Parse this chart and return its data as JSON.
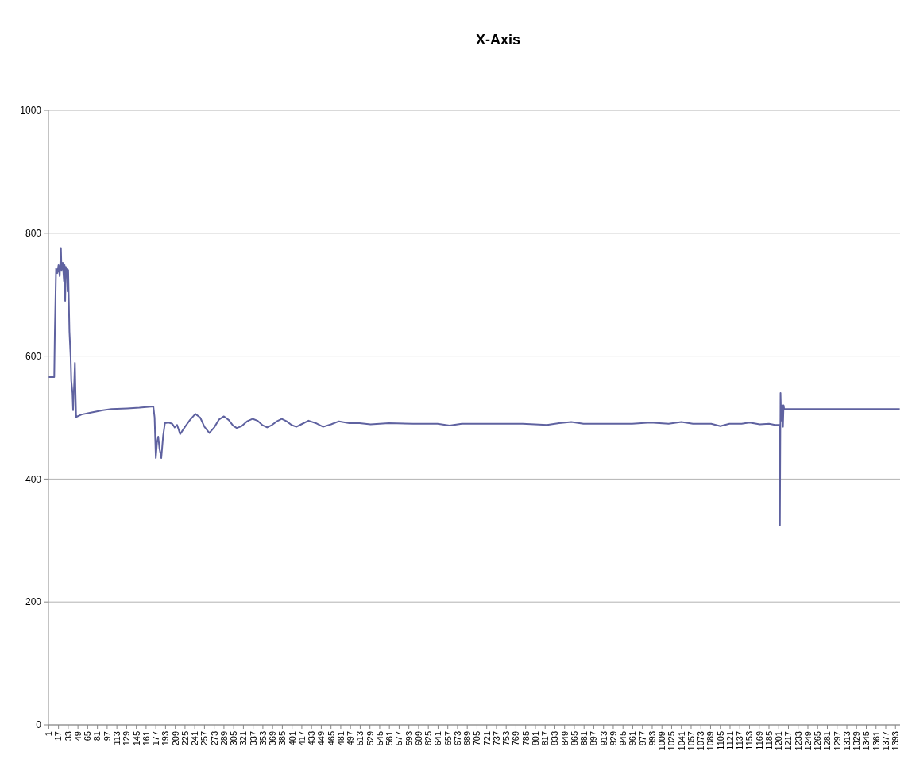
{
  "chart_data": {
    "type": "line",
    "title": "X-Axis",
    "x": [
      1,
      10,
      11,
      12,
      13,
      15,
      17,
      19,
      21,
      22,
      24,
      26,
      27,
      28,
      29,
      31,
      32,
      33,
      35,
      37,
      38,
      40,
      41,
      43,
      44,
      45,
      46,
      55,
      70,
      90,
      104,
      130,
      150,
      173,
      175,
      177,
      179,
      181,
      183,
      186,
      189,
      192,
      198,
      204,
      208,
      212,
      217,
      225,
      233,
      242,
      250,
      257,
      265,
      273,
      281,
      289,
      297,
      304,
      310,
      318,
      327,
      336,
      344,
      352,
      360,
      368,
      376,
      384,
      392,
      400,
      408,
      418,
      428,
      440,
      452,
      465,
      478,
      495,
      512,
      530,
      560,
      600,
      640,
      660,
      680,
      720,
      780,
      820,
      840,
      860,
      880,
      930,
      960,
      990,
      1020,
      1041,
      1060,
      1090,
      1105,
      1120,
      1140,
      1153,
      1170,
      1185,
      1195,
      1202,
      1203,
      1204,
      1205,
      1206,
      1207,
      1208,
      1209,
      1210,
      1300,
      1400
    ],
    "series": [
      {
        "color": "#5f62a0",
        "values": [
          566,
          566,
          640,
          690,
          743,
          735,
          748,
          730,
          776,
          740,
          752,
          722,
          748,
          690,
          745,
          740,
          705,
          740,
          640,
          598,
          560,
          540,
          512,
          560,
          589,
          540,
          501,
          505,
          508,
          512,
          514,
          515,
          516,
          518,
          500,
          434,
          460,
          469,
          450,
          434,
          470,
          491,
          492,
          490,
          484,
          488,
          473,
          485,
          496,
          506,
          500,
          485,
          475,
          484,
          497,
          502,
          496,
          487,
          483,
          486,
          494,
          498,
          495,
          488,
          484,
          488,
          494,
          498,
          494,
          488,
          485,
          490,
          495,
          491,
          485,
          489,
          494,
          491,
          491,
          489,
          491,
          490,
          490,
          487,
          490,
          490,
          490,
          488,
          491,
          493,
          490,
          490,
          490,
          492,
          490,
          493,
          490,
          490,
          486,
          490,
          490,
          492,
          489,
          490,
          488,
          488,
          325,
          540,
          500,
          495,
          520,
          485,
          520,
          514,
          514,
          514
        ]
      }
    ],
    "xlim": [
      0.5,
      1400.5
    ],
    "xticks": [
      1,
      17,
      33,
      49,
      65,
      81,
      97,
      113,
      129,
      145,
      161,
      177,
      193,
      209,
      225,
      241,
      257,
      273,
      289,
      305,
      321,
      337,
      353,
      369,
      385,
      401,
      417,
      433,
      449,
      465,
      481,
      497,
      513,
      529,
      545,
      561,
      577,
      593,
      609,
      625,
      641,
      657,
      673,
      689,
      705,
      721,
      737,
      753,
      769,
      785,
      801,
      817,
      833,
      849,
      865,
      881,
      897,
      913,
      929,
      945,
      961,
      977,
      993,
      1009,
      1025,
      1041,
      1057,
      1073,
      1089,
      1105,
      1121,
      1137,
      1153,
      1169,
      1185,
      1201,
      1217,
      1233,
      1249,
      1265,
      1281,
      1297,
      1313,
      1329,
      1345,
      1361,
      1377,
      1393
    ],
    "ylim": [
      0,
      1000
    ],
    "yticks": [
      0,
      200,
      400,
      600,
      800,
      1000
    ],
    "grid": "y",
    "marker": "none",
    "line_style": "solid"
  }
}
